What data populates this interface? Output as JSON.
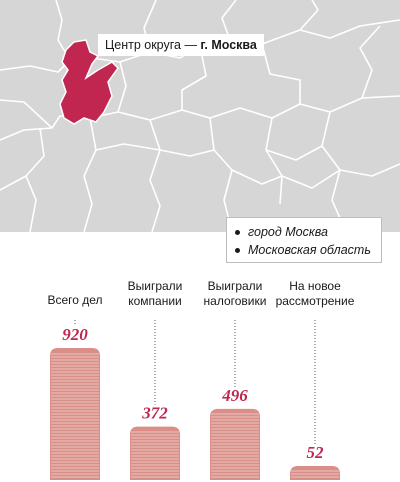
{
  "map": {
    "callout_prefix": "Центр округа — ",
    "callout_city": "г. Москва",
    "colors": {
      "land": "#d6d6d6",
      "borders": "#ffffff",
      "highlight": "#c0264f"
    }
  },
  "legend": {
    "items": [
      "город Москва",
      "Московская область"
    ]
  },
  "chart_data": {
    "type": "bar",
    "categories": [
      "Всего дел",
      "Выиграли компании",
      "Выиграли налоговики",
      "На новое рассмотрение"
    ],
    "category_lines": [
      [
        "Всего дел"
      ],
      [
        "Выиграли",
        "компании"
      ],
      [
        "Выиграли",
        "налоговики"
      ],
      [
        "На новое",
        "рассмотрение"
      ]
    ],
    "values": [
      920,
      372,
      496,
      52
    ],
    "ylim": [
      0,
      920
    ],
    "title": "",
    "xlabel": "",
    "ylabel": "",
    "grid": false,
    "colors": {
      "stack": "#d98e88",
      "stripes": "#f3d6d3",
      "value_label": "#c0264f"
    }
  }
}
